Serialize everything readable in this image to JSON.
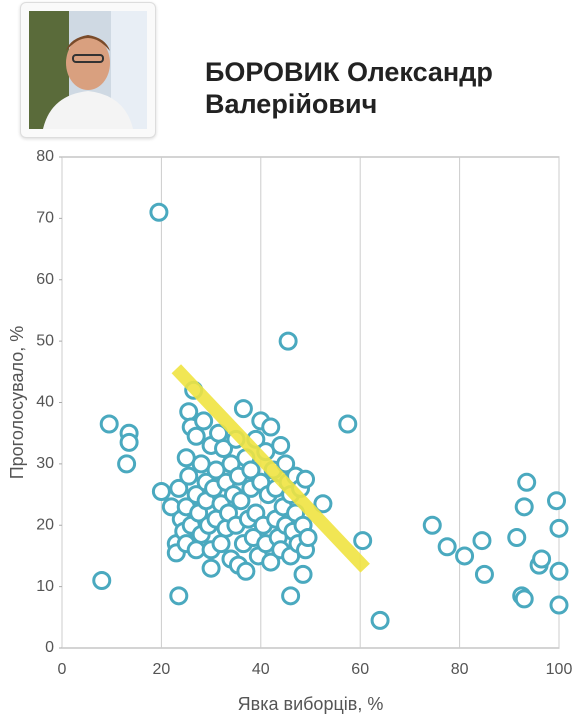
{
  "chart_data": {
    "type": "scatter",
    "title": "БОРОВИК Олександр Валерійович",
    "x_label": "Явка виборців, %",
    "y_label": "Проголосувало, %",
    "xlim": [
      0,
      100
    ],
    "ylim": [
      0,
      80
    ],
    "xticks": [
      0,
      20,
      40,
      60,
      80,
      100
    ],
    "yticks": [
      0,
      10,
      20,
      30,
      40,
      50,
      60,
      70,
      80
    ],
    "grid": "x",
    "color": "#4aa9bf",
    "trend_color": "#f0e442",
    "trend_line": {
      "x": [
        23,
        61
      ],
      "y": [
        45.5,
        13
      ]
    },
    "x": [
      19.5,
      45.5,
      9.5,
      13.5,
      13.5,
      13,
      8,
      23.5,
      57.5,
      60.5,
      64,
      46,
      48.5,
      52.5,
      74.5,
      77.5,
      81,
      84.5,
      85,
      91.5,
      92.5,
      93,
      93,
      93.5,
      96,
      96.5,
      99.5,
      100,
      100,
      100,
      20,
      22,
      23,
      23,
      23.5,
      25,
      25.5,
      24,
      24.5,
      25,
      25,
      25.5,
      26,
      26,
      26.5,
      27,
      27,
      27,
      27.5,
      28,
      28,
      28.5,
      29,
      29,
      29.5,
      30,
      30,
      30,
      30.5,
      31,
      31,
      31.5,
      32,
      32,
      32.5,
      33,
      33,
      33.5,
      34,
      34,
      34.5,
      35,
      35,
      35.5,
      35.5,
      36,
      36.5,
      36.5,
      37,
      37,
      37.5,
      38,
      38,
      38.5,
      39,
      39,
      39.5,
      40,
      40,
      40.5,
      41,
      41,
      41.5,
      42,
      42,
      42.5,
      43,
      43,
      43.5,
      44,
      44,
      44.5,
      45,
      45,
      45.5,
      46,
      46,
      46.5,
      47,
      47,
      47.5,
      48,
      48.5,
      49,
      49,
      49.5
    ],
    "values": [
      71,
      50,
      36.5,
      35,
      33.5,
      30,
      11,
      8.5,
      36.5,
      17.5,
      4.5,
      8.5,
      12,
      23.5,
      20,
      16.5,
      15,
      17.5,
      12,
      18,
      8.5,
      8,
      23,
      27,
      13.5,
      14.5,
      24,
      19.5,
      12.5,
      7,
      25.5,
      23,
      17,
      15.5,
      26,
      31,
      38.5,
      21,
      19,
      17,
      23,
      28,
      20,
      36,
      42,
      34.5,
      25,
      16,
      22,
      30,
      18.5,
      37,
      27,
      24,
      20,
      13,
      16,
      33,
      26,
      21,
      29,
      35,
      17,
      23.5,
      32.5,
      19.5,
      27,
      22,
      30,
      14.5,
      25,
      20,
      34,
      13.5,
      28,
      24,
      39,
      17,
      12.5,
      31,
      21,
      26,
      29,
      18,
      34,
      22,
      15,
      37,
      27,
      20,
      32,
      17,
      25,
      36,
      14,
      29,
      21,
      26,
      18,
      33,
      16,
      23,
      30,
      20,
      27,
      15,
      25,
      19,
      28,
      22,
      17,
      26,
      20,
      16,
      27.5,
      18
    ]
  }
}
